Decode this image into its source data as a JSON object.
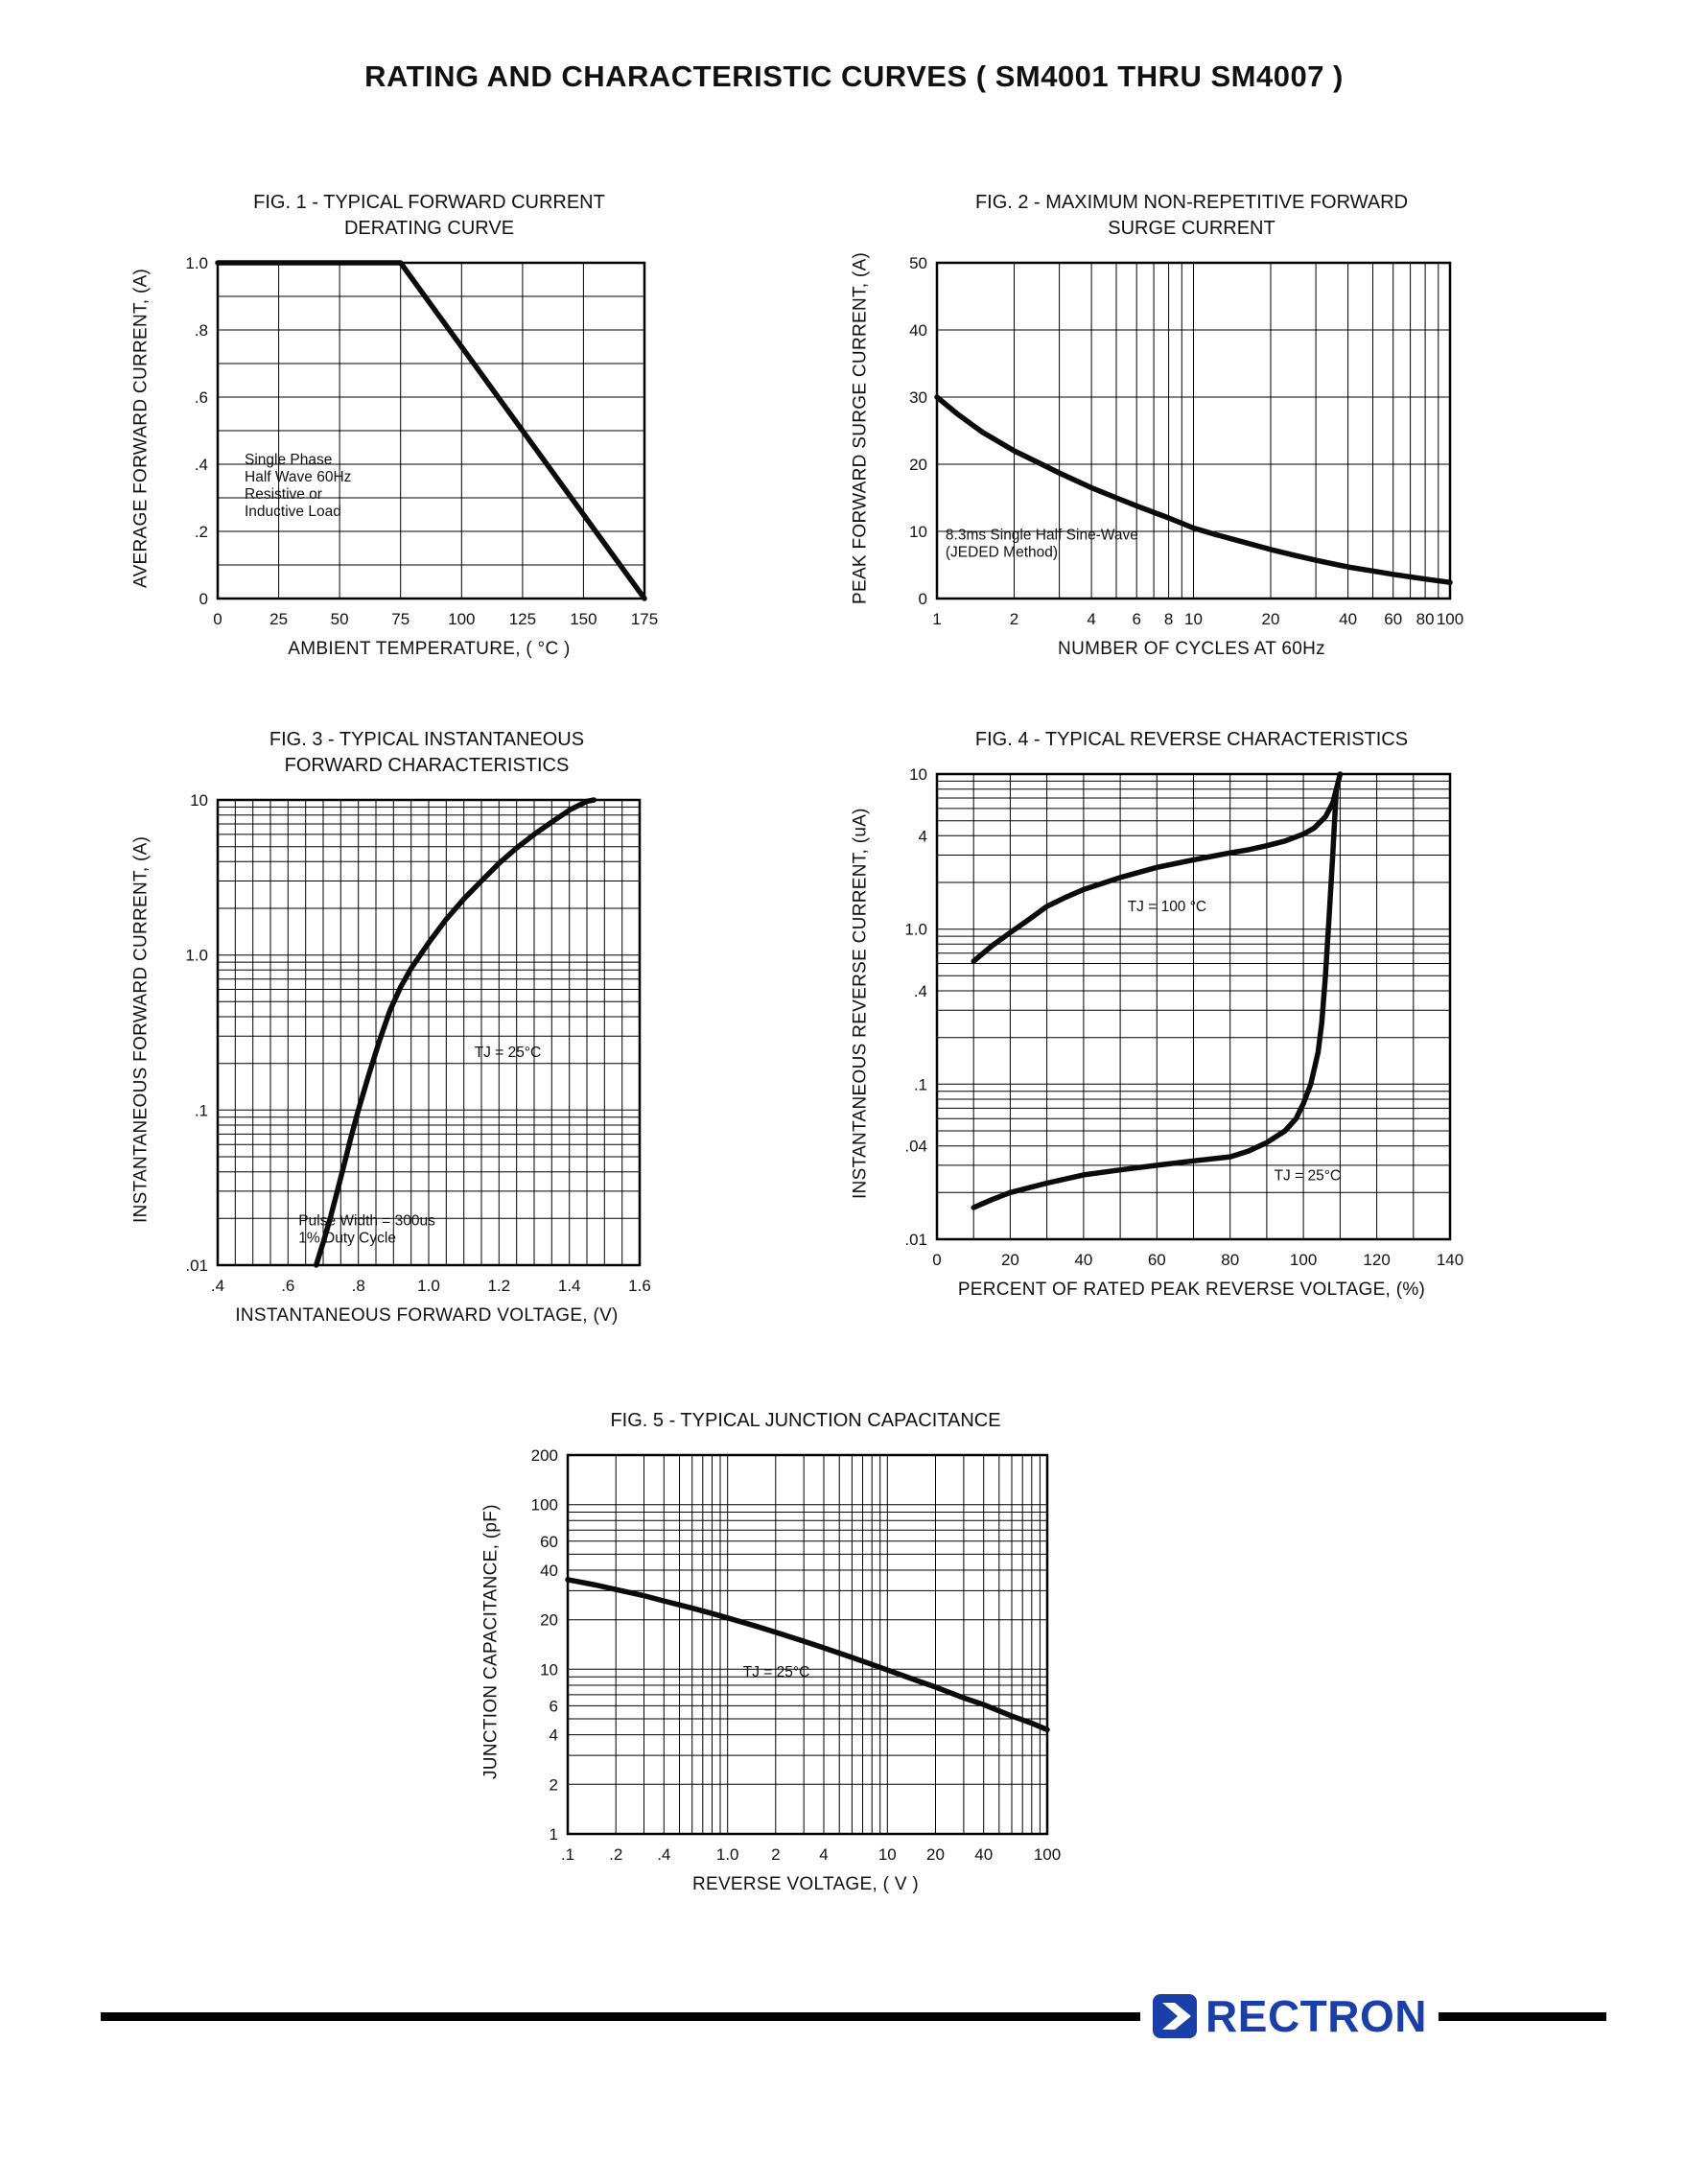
{
  "page": {
    "title": "RATING AND CHARACTERISTIC CURVES ( SM4001 THRU SM4007 )"
  },
  "footer": {
    "brand": "RECTRON",
    "brand_color": "#1b3fa8",
    "bar_color": "#000000"
  },
  "chart_data": [
    {
      "type": "line",
      "title_line1": "FIG. 1 - TYPICAL FORWARD CURRENT",
      "title_line2": "DERATING CURVE",
      "xlabel": "AMBIENT TEMPERATURE, ( °C )",
      "ylabel": "AVERAGE FORWARD CURRENT, (A)",
      "plot_size": [
        445,
        350
      ],
      "x_axis": {
        "scale": "linear",
        "min": 0,
        "max": 175,
        "grid_step": 25,
        "ticks": [
          0,
          25,
          50,
          75,
          100,
          125,
          150,
          175
        ],
        "tick_labels": [
          "0",
          "25",
          "50",
          "75",
          "100",
          "125",
          "150",
          "175"
        ]
      },
      "y_axis": {
        "scale": "linear",
        "min": 0,
        "max": 1.0,
        "grid_step": 0.1,
        "ticks": [
          0,
          0.2,
          0.4,
          0.6,
          0.8,
          1.0
        ],
        "tick_labels": [
          "0",
          ".2",
          ".4",
          ".6",
          ".8",
          "1.0"
        ]
      },
      "series": [
        {
          "name": "derating-curve",
          "points": [
            [
              0,
              1.0
            ],
            [
              75,
              1.0
            ],
            [
              175,
              0
            ]
          ]
        }
      ],
      "annotations": [
        {
          "x": 11,
          "y": 0.4,
          "lines": [
            "Single Phase",
            "Half Wave 60Hz",
            "Resistive or",
            "Inductive Load"
          ]
        }
      ]
    },
    {
      "type": "line",
      "title_line1": "FIG. 2 - MAXIMUM NON-REPETITIVE FORWARD",
      "title_line2": "SURGE CURRENT",
      "xlabel": "NUMBER OF CYCLES AT 60Hz",
      "ylabel": "PEAK FORWARD SURGE CURRENT, (A)",
      "plot_size": [
        535,
        350
      ],
      "x_axis": {
        "scale": "log",
        "min": 1,
        "max": 100,
        "ticks": [
          1,
          2,
          4,
          6,
          8,
          10,
          20,
          40,
          60,
          80,
          100
        ],
        "tick_labels": [
          "1",
          "2",
          "4",
          "6",
          "8",
          "10",
          "20",
          "40",
          "60",
          "80",
          "100"
        ]
      },
      "y_axis": {
        "scale": "linear",
        "min": 0,
        "max": 50,
        "grid_step": 10,
        "ticks": [
          0,
          10,
          20,
          30,
          40,
          50
        ],
        "tick_labels": [
          "0",
          "10",
          "20",
          "30",
          "40",
          "50"
        ]
      },
      "series": [
        {
          "name": "surge-current",
          "points": [
            [
              1,
              30
            ],
            [
              1.2,
              27.5
            ],
            [
              1.5,
              24.8
            ],
            [
              2,
              22
            ],
            [
              2.5,
              20.2
            ],
            [
              3,
              18.7
            ],
            [
              4,
              16.5
            ],
            [
              5,
              15
            ],
            [
              6,
              13.8
            ],
            [
              8,
              12
            ],
            [
              10,
              10.5
            ],
            [
              12,
              9.6
            ],
            [
              15,
              8.6
            ],
            [
              20,
              7.3
            ],
            [
              25,
              6.4
            ],
            [
              30,
              5.7
            ],
            [
              40,
              4.7
            ],
            [
              50,
              4.1
            ],
            [
              60,
              3.6
            ],
            [
              80,
              2.9
            ],
            [
              100,
              2.4
            ]
          ]
        }
      ],
      "annotations": [
        {
          "x": 1.08,
          "y": 8.8,
          "lines": [
            "8.3ms Single Half Sine-Wave",
            "(JEDED Method)"
          ]
        }
      ]
    },
    {
      "type": "line",
      "title_line1": "FIG. 3 - TYPICAL INSTANTANEOUS",
      "title_line2": "FORWARD CHARACTERISTICS",
      "xlabel": "INSTANTANEOUS FORWARD VOLTAGE, (V)",
      "ylabel": "INSTANTANEOUS FORWARD CURRENT, (A)",
      "plot_size": [
        440,
        485
      ],
      "x_axis": {
        "scale": "linear",
        "min": 0.4,
        "max": 1.6,
        "grid_step": 0.05,
        "ticks": [
          0.4,
          0.6,
          0.8,
          1.0,
          1.2,
          1.4,
          1.6
        ],
        "tick_labels": [
          ".4",
          ".6",
          ".8",
          "1.0",
          "1.2",
          "1.4",
          "1.6"
        ]
      },
      "y_axis": {
        "scale": "log",
        "min": 0.01,
        "max": 10,
        "ticks": [
          10,
          1,
          0.1,
          0.01
        ],
        "tick_labels": [
          "10",
          "1.0",
          ".1",
          ".01"
        ]
      },
      "series": [
        {
          "name": "forward-characteristic",
          "points": [
            [
              0.68,
              0.01
            ],
            [
              0.7,
              0.014
            ],
            [
              0.72,
              0.02
            ],
            [
              0.74,
              0.03
            ],
            [
              0.76,
              0.045
            ],
            [
              0.78,
              0.068
            ],
            [
              0.8,
              0.1
            ],
            [
              0.83,
              0.17
            ],
            [
              0.86,
              0.28
            ],
            [
              0.89,
              0.44
            ],
            [
              0.92,
              0.62
            ],
            [
              0.95,
              0.82
            ],
            [
              1.0,
              1.2
            ],
            [
              1.05,
              1.7
            ],
            [
              1.1,
              2.3
            ],
            [
              1.15,
              3.0
            ],
            [
              1.2,
              3.9
            ],
            [
              1.25,
              4.9
            ],
            [
              1.3,
              6.0
            ],
            [
              1.35,
              7.2
            ],
            [
              1.4,
              8.6
            ],
            [
              1.45,
              9.8
            ],
            [
              1.47,
              10
            ]
          ]
        }
      ],
      "annotations": [
        {
          "x": 1.13,
          "y": 0.22,
          "lines": [
            "TJ = 25°C"
          ]
        },
        {
          "x": 0.63,
          "y": 0.018,
          "lines": [
            "Pulse Width = 300us",
            "1% Duty Cycle"
          ]
        }
      ]
    },
    {
      "type": "line",
      "title_line1": "FIG. 4 - TYPICAL REVERSE CHARACTERISTICS",
      "title_line2": "",
      "xlabel": "PERCENT OF RATED PEAK REVERSE VOLTAGE, (%)",
      "ylabel": "INSTANTANEOUS REVERSE CURRENT, (uA)",
      "plot_size": [
        535,
        485
      ],
      "x_axis": {
        "scale": "linear",
        "min": 0,
        "max": 140,
        "grid_step": 10,
        "ticks": [
          0,
          20,
          40,
          60,
          80,
          100,
          120,
          140
        ],
        "tick_labels": [
          "0",
          "20",
          "40",
          "60",
          "80",
          "100",
          "120",
          "140"
        ]
      },
      "y_axis": {
        "scale": "log",
        "min": 0.01,
        "max": 10,
        "ticks": [
          10,
          4,
          1,
          0.4,
          0.1,
          0.04,
          0.01
        ],
        "tick_labels": [
          "10",
          "4",
          "1.0",
          ".4",
          ".1",
          ".04",
          ".01"
        ]
      },
      "series": [
        {
          "name": "reverse-tj-100c",
          "points": [
            [
              10,
              0.62
            ],
            [
              15,
              0.78
            ],
            [
              20,
              0.95
            ],
            [
              25,
              1.15
            ],
            [
              30,
              1.4
            ],
            [
              35,
              1.6
            ],
            [
              40,
              1.8
            ],
            [
              50,
              2.15
            ],
            [
              60,
              2.5
            ],
            [
              70,
              2.8
            ],
            [
              80,
              3.1
            ],
            [
              85,
              3.25
            ],
            [
              90,
              3.45
            ],
            [
              95,
              3.7
            ],
            [
              100,
              4.1
            ],
            [
              103,
              4.5
            ],
            [
              106,
              5.3
            ],
            [
              108,
              6.5
            ],
            [
              109,
              8
            ],
            [
              110,
              10
            ]
          ]
        },
        {
          "name": "reverse-tj-25c",
          "points": [
            [
              10,
              0.016
            ],
            [
              15,
              0.018
            ],
            [
              20,
              0.02
            ],
            [
              30,
              0.023
            ],
            [
              40,
              0.026
            ],
            [
              50,
              0.028
            ],
            [
              60,
              0.03
            ],
            [
              70,
              0.032
            ],
            [
              80,
              0.034
            ],
            [
              85,
              0.037
            ],
            [
              90,
              0.042
            ],
            [
              95,
              0.05
            ],
            [
              98,
              0.06
            ],
            [
              100,
              0.075
            ],
            [
              102,
              0.1
            ],
            [
              104,
              0.16
            ],
            [
              105,
              0.25
            ],
            [
              106,
              0.5
            ],
            [
              107,
              1.2
            ],
            [
              108,
              3
            ],
            [
              108.5,
              5
            ],
            [
              109,
              8
            ]
          ]
        }
      ],
      "annotations": [
        {
          "x": 52,
          "y": 1.3,
          "lines": [
            "TJ = 100 °C"
          ]
        },
        {
          "x": 92,
          "y": 0.024,
          "lines": [
            "TJ = 25°C"
          ]
        }
      ]
    },
    {
      "type": "line",
      "title_line1": "FIG. 5 - TYPICAL JUNCTION CAPACITANCE",
      "title_line2": "",
      "xlabel": "REVERSE VOLTAGE, ( V )",
      "ylabel": "JUNCTION CAPACITANCE, (pF)",
      "plot_size": [
        500,
        395
      ],
      "x_axis": {
        "scale": "log",
        "min": 0.1,
        "max": 100,
        "ticks": [
          0.1,
          0.2,
          0.4,
          1,
          2,
          4,
          10,
          20,
          40,
          100
        ],
        "tick_labels": [
          ".1",
          ".2",
          ".4",
          "1.0",
          "2",
          "4",
          "10",
          "20",
          "40",
          "100"
        ]
      },
      "y_axis": {
        "scale": "log",
        "min": 1,
        "max": 200,
        "ticks": [
          200,
          100,
          60,
          40,
          20,
          10,
          6,
          4,
          2,
          1
        ],
        "tick_labels": [
          "200",
          "100",
          "60",
          "40",
          "20",
          "10",
          "6",
          "4",
          "2",
          "1"
        ]
      },
      "series": [
        {
          "name": "junction-capacitance",
          "points": [
            [
              0.1,
              35
            ],
            [
              0.15,
              32.5
            ],
            [
              0.2,
              30.5
            ],
            [
              0.3,
              28
            ],
            [
              0.4,
              26
            ],
            [
              0.6,
              23.5
            ],
            [
              0.8,
              21.8
            ],
            [
              1,
              20.5
            ],
            [
              1.5,
              18.3
            ],
            [
              2,
              16.8
            ],
            [
              3,
              14.8
            ],
            [
              4,
              13.5
            ],
            [
              6,
              11.8
            ],
            [
              8,
              10.7
            ],
            [
              10,
              9.9
            ],
            [
              15,
              8.6
            ],
            [
              20,
              7.8
            ],
            [
              30,
              6.7
            ],
            [
              40,
              6.1
            ],
            [
              60,
              5.2
            ],
            [
              80,
              4.7
            ],
            [
              100,
              4.3
            ]
          ]
        }
      ],
      "annotations": [
        {
          "x": 1.25,
          "y": 9,
          "lines": [
            "TJ = 25°C"
          ]
        }
      ]
    }
  ]
}
